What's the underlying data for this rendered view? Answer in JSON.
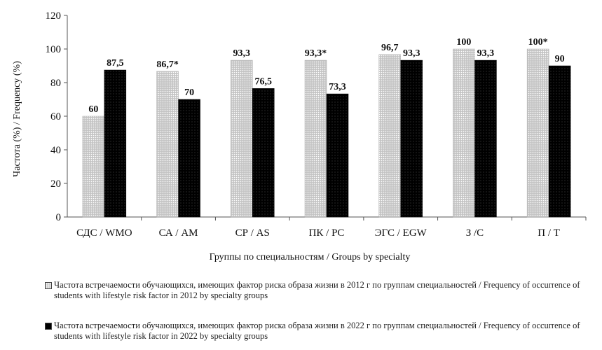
{
  "chart_data": {
    "type": "bar",
    "categories": [
      "СДС / WMO",
      "СА / AM",
      "СР / AS",
      "ПК / PC",
      "ЭГС / EGW",
      "З /С",
      "П / T"
    ],
    "series": [
      {
        "name": "Частота встречаемости обучающихся, имеющих фактор риска образа жизни в 2012 г по группам специальностей / Frequency of occurrence of students with lifestyle risk factor in 2012 by specialty groups",
        "values": [
          60,
          86.7,
          93.3,
          93.3,
          96.7,
          100,
          100
        ],
        "labels": [
          "60",
          "86,7*",
          "93,3",
          "93,3*",
          "96,7",
          "100",
          "100*"
        ],
        "color": "#c8c8c8"
      },
      {
        "name": "Частота встречаемости обучающихся, имеющих фактор риска образа жизни в 2022 г по группам специальностей / Frequency of occurrence of students with lifestyle risk factor in 2022 by specialty groups",
        "values": [
          87.5,
          70,
          76.5,
          73.3,
          93.3,
          93.3,
          90
        ],
        "labels": [
          "87,5",
          "70",
          "76,5",
          "73,3",
          "93,3",
          "93,3",
          "90"
        ],
        "color": "#000000"
      }
    ],
    "xlabel": "Группы по специальностям / Groups by specialty",
    "ylabel": "Частота (%) / Frequency (%)",
    "ylim": [
      0,
      120
    ],
    "yticks": [
      "0",
      "20",
      "40",
      "60",
      "80",
      "100",
      "120"
    ],
    "grid": false,
    "legend_position": "bottom"
  }
}
